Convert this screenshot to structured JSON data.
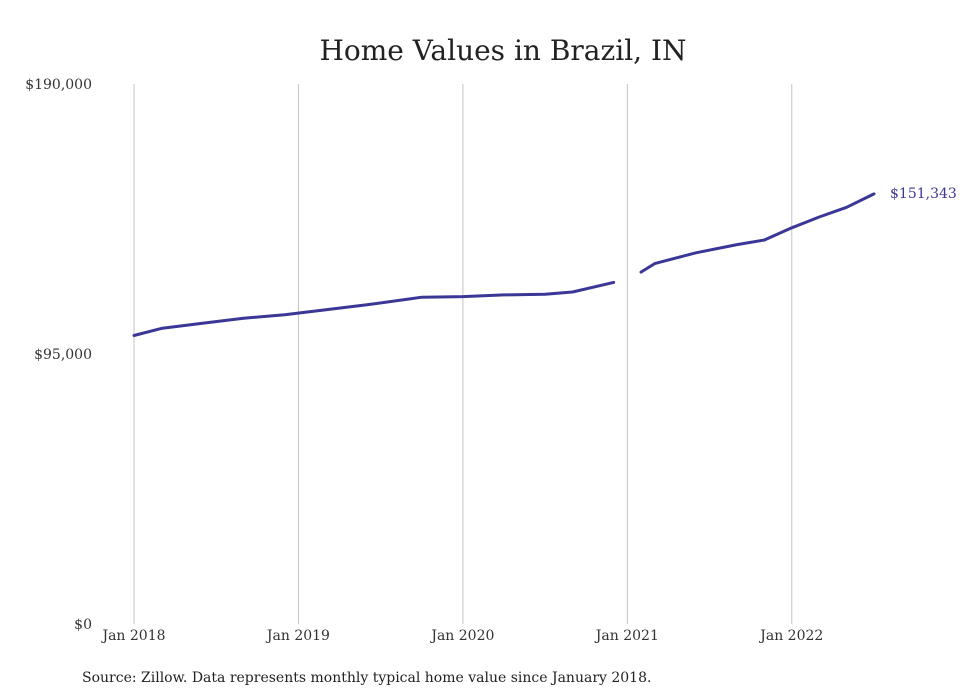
{
  "chart_data": {
    "type": "line",
    "title": "Home Values in Brazil, IN",
    "xlabel": "",
    "ylabel": "",
    "x_range": [
      "2018-01",
      "2022-07"
    ],
    "ylim": [
      0,
      190000
    ],
    "y_ticks": [
      {
        "value": 0,
        "label": "$0"
      },
      {
        "value": 95000,
        "label": "$95,000"
      },
      {
        "value": 190000,
        "label": "$190,000"
      }
    ],
    "x_ticks": [
      {
        "date": "2018-01",
        "label": "Jan 2018"
      },
      {
        "date": "2019-01",
        "label": "Jan 2019"
      },
      {
        "date": "2020-01",
        "label": "Jan 2020"
      },
      {
        "date": "2021-01",
        "label": "Jan 2021"
      },
      {
        "date": "2022-01",
        "label": "Jan 2022"
      }
    ],
    "grid": {
      "vertical": true,
      "horizontal": false
    },
    "series": [
      {
        "color": "#3a3797",
        "segments": [
          [
            {
              "x": "2018-01",
              "y": 101500
            },
            {
              "x": "2018-03",
              "y": 104000
            },
            {
              "x": "2018-06",
              "y": 105800
            },
            {
              "x": "2018-09",
              "y": 107600
            },
            {
              "x": "2018-12",
              "y": 108800
            },
            {
              "x": "2019-03",
              "y": 110600
            },
            {
              "x": "2019-06",
              "y": 112300
            },
            {
              "x": "2019-09",
              "y": 114300
            },
            {
              "x": "2019-10",
              "y": 115000
            },
            {
              "x": "2020-01",
              "y": 115200
            },
            {
              "x": "2020-04",
              "y": 115800
            },
            {
              "x": "2020-07",
              "y": 116000
            },
            {
              "x": "2020-09",
              "y": 116800
            },
            {
              "x": "2020-12",
              "y": 120200
            }
          ],
          [
            {
              "x": "2021-02",
              "y": 123800
            },
            {
              "x": "2021-03",
              "y": 126800
            },
            {
              "x": "2021-06",
              "y": 130600
            },
            {
              "x": "2021-09",
              "y": 133500
            },
            {
              "x": "2021-11",
              "y": 135100
            },
            {
              "x": "2022-01",
              "y": 139400
            },
            {
              "x": "2022-03",
              "y": 143200
            },
            {
              "x": "2022-05",
              "y": 146600
            },
            {
              "x": "2022-07",
              "y": 151343
            }
          ]
        ],
        "end_label": "$151,343"
      }
    ],
    "source_note": "Source: Zillow. Data represents monthly typical home value since January 2018."
  }
}
